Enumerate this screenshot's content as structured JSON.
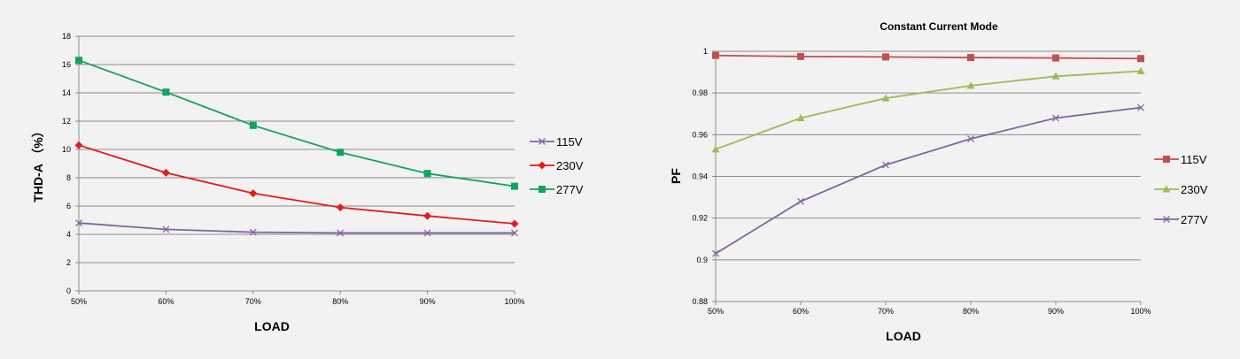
{
  "chart_data": [
    {
      "type": "line",
      "title": "",
      "xlabel": "LOAD",
      "ylabel": "THD-A （%）",
      "categories": [
        "50%",
        "60%",
        "70%",
        "80%",
        "90%",
        "100%"
      ],
      "ylim": [
        0,
        18
      ],
      "yticks": [
        0,
        2,
        4,
        6,
        8,
        10,
        12,
        14,
        16,
        18
      ],
      "ytick_labels": [
        "0",
        "2",
        "4",
        "6",
        "8",
        "10",
        "12",
        "14",
        "16",
        "18"
      ],
      "grid": true,
      "legend_position": "right",
      "series": [
        {
          "name": "115V",
          "values": [
            4.8,
            4.35,
            4.15,
            4.1,
            4.1,
            4.1
          ],
          "color": "#8064a2",
          "marker": "x"
        },
        {
          "name": "230V",
          "values": [
            10.3,
            8.35,
            6.9,
            5.9,
            5.3,
            4.75
          ],
          "color": "#e31b1b",
          "marker": "diamond"
        },
        {
          "name": "277V",
          "values": [
            16.3,
            14.05,
            11.7,
            9.8,
            8.3,
            7.4
          ],
          "color": "#12a35a",
          "marker": "square"
        }
      ]
    },
    {
      "type": "line",
      "title": "Constant Current Mode",
      "xlabel": "LOAD",
      "ylabel": "PF",
      "categories": [
        "50%",
        "60%",
        "70%",
        "80%",
        "90%",
        "100%"
      ],
      "ylim": [
        0.88,
        1.0
      ],
      "yticks": [
        0.88,
        0.9,
        0.92,
        0.94,
        0.96,
        0.98,
        1.0
      ],
      "ytick_labels": [
        "0.88",
        "0.9",
        "0.92",
        "0.94",
        "0.96",
        "0.98",
        "1"
      ],
      "grid": true,
      "legend_position": "right",
      "series": [
        {
          "name": "115V",
          "values": [
            0.998,
            0.9975,
            0.9973,
            0.997,
            0.9968,
            0.9965
          ],
          "color": "#c0504d",
          "marker": "square"
        },
        {
          "name": "230V",
          "values": [
            0.953,
            0.968,
            0.9775,
            0.9835,
            0.988,
            0.9905
          ],
          "color": "#9bbb59",
          "marker": "triangle"
        },
        {
          "name": "277V",
          "values": [
            0.903,
            0.928,
            0.9455,
            0.958,
            0.968,
            0.973
          ],
          "color": "#8064a2",
          "marker": "x"
        }
      ]
    }
  ]
}
